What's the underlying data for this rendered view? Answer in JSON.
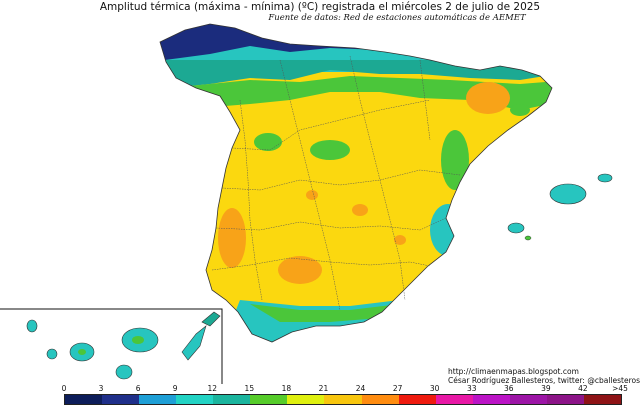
{
  "title": "Amplitud térmica (máxima - mínima) (ºC) registrada el miércoles 2 de julio de 2025",
  "subtitle": "Fuente de datos: Red de estaciones automáticas de AEMET",
  "credits": {
    "url": "http://climaenmapas.blogspot.com",
    "author": "César Rodríguez Ballesteros, twitter: @cballesteros"
  },
  "legend": {
    "ticks": [
      "0",
      "3",
      "6",
      "9",
      "12",
      "15",
      "18",
      "21",
      "24",
      "27",
      "30",
      "33",
      "36",
      "39",
      "42",
      ">45"
    ],
    "colors": [
      "#0d1d5a",
      "#1f2f8a",
      "#1e9fd6",
      "#22d3c4",
      "#1bb59e",
      "#56cc2a",
      "#dff00f",
      "#f8c60e",
      "#ff8c10",
      "#ef1b0f",
      "#e818a6",
      "#bb14c6",
      "#9c15a6",
      "#8c1488",
      "#8e1316"
    ]
  },
  "map_colors": {
    "sea": "#ffffff",
    "very_low": "#1b2c7d",
    "low": "#27c5bf",
    "low_mid": "#1ca993",
    "mid": "#4bc63a",
    "high": "#fbd80f",
    "higher": "#f8a318",
    "border": "#333333"
  }
}
